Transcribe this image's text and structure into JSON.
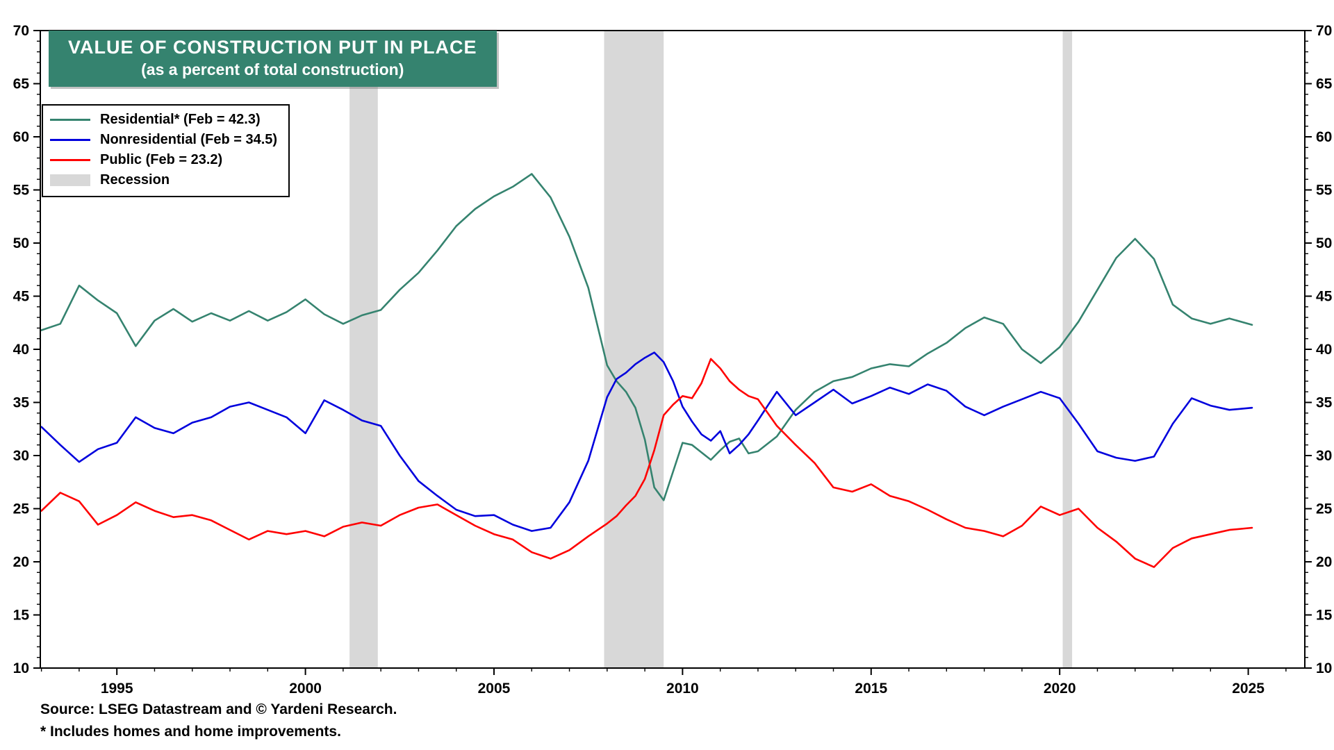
{
  "title": {
    "line1": "VALUE OF CONSTRUCTION PUT IN PLACE",
    "line2": "(as a percent of total construction)",
    "bg_color": "#35836f",
    "text_color": "#ffffff"
  },
  "legend": {
    "items": [
      {
        "label": "Residential* (Feb = 42.3)",
        "color": "#35836f",
        "type": "line"
      },
      {
        "label": "Nonresidential (Feb = 34.5)",
        "color": "#0000dd",
        "type": "line"
      },
      {
        "label": "Public (Feb = 23.2)",
        "color": "#ff0000",
        "type": "line"
      },
      {
        "label": "Recession",
        "color": "#d8d8d8",
        "type": "band"
      }
    ]
  },
  "source": {
    "line1": "Source: LSEG Datastream and © Yardeni Research.",
    "line2": "* Includes homes and home improvements."
  },
  "colors": {
    "recession": "#d8d8d8",
    "frame": "#000000",
    "background": "#ffffff"
  },
  "chart_data": {
    "type": "line",
    "title": "VALUE OF CONSTRUCTION PUT IN PLACE (as a percent of total construction)",
    "xlabel": "",
    "ylabel": "",
    "x_range": [
      1992.97,
      2026.5
    ],
    "y_range": [
      10,
      70
    ],
    "y_major_step": 5,
    "y_minor_step": 1,
    "x_major_ticks": [
      1995,
      2000,
      2005,
      2010,
      2015,
      2020,
      2025
    ],
    "x_minor_step_years": 1,
    "grid": false,
    "legend_position": "top-left",
    "recessions": [
      [
        2001.17,
        2001.92
      ],
      [
        2007.92,
        2009.5
      ],
      [
        2020.08,
        2020.33
      ]
    ],
    "x": [
      1993,
      1993.5,
      1994,
      1994.5,
      1995,
      1995.5,
      1996,
      1996.5,
      1997,
      1997.5,
      1998,
      1998.5,
      1999,
      1999.5,
      2000,
      2000.5,
      2001,
      2001.5,
      2002,
      2002.5,
      2003,
      2003.5,
      2004,
      2004.5,
      2005,
      2005.5,
      2006,
      2006.5,
      2007,
      2007.5,
      2008,
      2008.25,
      2008.5,
      2008.75,
      2009,
      2009.25,
      2009.5,
      2009.75,
      2010,
      2010.25,
      2010.5,
      2010.75,
      2011,
      2011.25,
      2011.5,
      2011.75,
      2012,
      2012.5,
      2013,
      2013.5,
      2014,
      2014.5,
      2015,
      2015.5,
      2016,
      2016.5,
      2017,
      2017.5,
      2018,
      2018.5,
      2019,
      2019.5,
      2020,
      2020.5,
      2021,
      2021.5,
      2022,
      2022.5,
      2023,
      2023.5,
      2024,
      2024.5,
      2025.1
    ],
    "series": [
      {
        "name": "Residential",
        "color": "#35836f",
        "latest_label": "Feb = 42.3",
        "values": [
          41.8,
          42.4,
          46.0,
          44.6,
          43.4,
          40.3,
          42.7,
          43.8,
          42.6,
          43.4,
          42.7,
          43.6,
          42.7,
          43.5,
          44.7,
          43.3,
          42.4,
          43.2,
          43.7,
          45.6,
          47.2,
          49.3,
          51.6,
          53.2,
          54.4,
          55.3,
          56.5,
          54.3,
          50.6,
          45.8,
          38.5,
          37.0,
          36.0,
          34.5,
          31.5,
          27.0,
          25.8,
          28.5,
          31.2,
          31.0,
          30.3,
          29.6,
          30.5,
          31.3,
          31.6,
          30.2,
          30.4,
          31.8,
          34.3,
          36.0,
          37.0,
          37.4,
          38.2,
          38.6,
          38.4,
          39.6,
          40.6,
          42.0,
          43.0,
          42.4,
          40.0,
          38.7,
          40.2,
          42.6,
          45.6,
          48.6,
          50.4,
          48.5,
          44.2,
          42.9,
          42.4,
          42.9,
          42.3
        ]
      },
      {
        "name": "Nonresidential",
        "color": "#0000dd",
        "latest_label": "Feb = 34.5",
        "values": [
          32.7,
          31.0,
          29.4,
          30.6,
          31.2,
          33.6,
          32.6,
          32.1,
          33.1,
          33.6,
          34.6,
          35.0,
          34.3,
          33.6,
          32.1,
          35.2,
          34.3,
          33.3,
          32.8,
          30.0,
          27.6,
          26.2,
          24.9,
          24.3,
          24.4,
          23.5,
          22.9,
          23.2,
          25.6,
          29.5,
          35.5,
          37.2,
          37.8,
          38.6,
          39.2,
          39.7,
          38.8,
          37.0,
          34.6,
          33.2,
          32.0,
          31.4,
          32.3,
          30.2,
          31.0,
          32.0,
          33.3,
          36.0,
          33.8,
          35.0,
          36.2,
          34.9,
          35.6,
          36.4,
          35.8,
          36.7,
          36.1,
          34.6,
          33.8,
          34.6,
          35.3,
          36.0,
          35.4,
          33.0,
          30.4,
          29.8,
          29.5,
          29.9,
          33.0,
          35.4,
          34.7,
          34.3,
          34.5
        ]
      },
      {
        "name": "Public",
        "color": "#ff0000",
        "latest_label": "Feb = 23.2",
        "values": [
          24.8,
          26.5,
          25.7,
          23.5,
          24.4,
          25.6,
          24.8,
          24.2,
          24.4,
          23.9,
          23.0,
          22.1,
          22.9,
          22.6,
          22.9,
          22.4,
          23.3,
          23.7,
          23.4,
          24.4,
          25.1,
          25.4,
          24.4,
          23.4,
          22.6,
          22.1,
          20.9,
          20.3,
          21.1,
          22.4,
          23.6,
          24.3,
          25.3,
          26.2,
          27.8,
          30.5,
          33.8,
          34.8,
          35.6,
          35.4,
          36.8,
          39.1,
          38.2,
          37.0,
          36.2,
          35.6,
          35.3,
          32.8,
          31.0,
          29.3,
          27.0,
          26.6,
          27.3,
          26.2,
          25.7,
          24.9,
          24.0,
          23.2,
          22.9,
          22.4,
          23.4,
          25.2,
          24.4,
          25.0,
          23.2,
          21.9,
          20.3,
          19.5,
          21.3,
          22.2,
          22.6,
          23.0,
          23.2
        ]
      }
    ]
  }
}
